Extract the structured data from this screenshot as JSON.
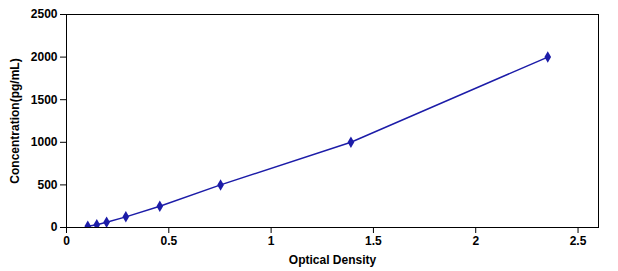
{
  "chart_data": {
    "type": "line",
    "x": [
      0.104,
      0.148,
      0.196,
      0.29,
      0.456,
      0.753,
      1.39,
      2.352
    ],
    "values": [
      15.6,
      31.25,
      62.5,
      125,
      250,
      500,
      1000,
      2000
    ],
    "color": "#1C1CA8",
    "marker": "diamond",
    "line_style": "solid",
    "xlabel": "Optical Density",
    "ylabel": "Concentration(pg/mL)",
    "xlim": [
      0.0,
      2.6
    ],
    "ylim": [
      0,
      2500
    ],
    "xticks": [
      0,
      0.5,
      1,
      1.5,
      2,
      2.5
    ],
    "yticks": [
      0,
      500,
      1000,
      1500,
      2000,
      2500
    ]
  }
}
